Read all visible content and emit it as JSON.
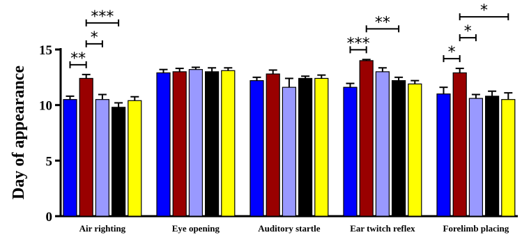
{
  "chart_data": {
    "type": "bar",
    "ylabel": "Day of appearance",
    "ylim": [
      0,
      15
    ],
    "yticks": [
      "0",
      "5",
      "10",
      "15"
    ],
    "categories": [
      "Air righting",
      "Eye opening",
      "Auditory startle",
      "Ear twitch reflex",
      "Forelimb placing"
    ],
    "series": [
      {
        "color": "#0000ff",
        "values": [
          10.5,
          12.9,
          12.2,
          11.6,
          11.0
        ],
        "errors": [
          0.3,
          0.3,
          0.3,
          0.35,
          0.6
        ]
      },
      {
        "color": "#990000",
        "values": [
          12.4,
          13.0,
          12.8,
          14.0,
          12.9
        ],
        "errors": [
          0.35,
          0.3,
          0.35,
          0.1,
          0.4
        ]
      },
      {
        "color": "#9999ff",
        "values": [
          10.5,
          13.2,
          11.6,
          13.0,
          10.6
        ],
        "errors": [
          0.45,
          0.2,
          0.8,
          0.35,
          0.35
        ]
      },
      {
        "color": "#000000",
        "values": [
          9.8,
          13.0,
          12.4,
          12.2,
          10.8
        ],
        "errors": [
          0.4,
          0.35,
          0.2,
          0.3,
          0.45
        ]
      },
      {
        "color": "#ffff00",
        "values": [
          10.4,
          13.1,
          12.4,
          11.9,
          10.5
        ],
        "errors": [
          0.35,
          0.25,
          0.3,
          0.3,
          0.6
        ]
      }
    ],
    "significance": [
      {
        "category": 0,
        "from": 0,
        "to": 1,
        "label": "**"
      },
      {
        "category": 0,
        "from": 1,
        "to": 2,
        "label": "*"
      },
      {
        "category": 0,
        "from": 1,
        "to": 3,
        "label": "***"
      },
      {
        "category": 3,
        "from": 0,
        "to": 1,
        "label": "***"
      },
      {
        "category": 3,
        "from": 1,
        "to": 3,
        "label": "**"
      },
      {
        "category": 4,
        "from": 0,
        "to": 1,
        "label": "*"
      },
      {
        "category": 4,
        "from": 1,
        "to": 2,
        "label": "*"
      },
      {
        "category": 4,
        "from": 1,
        "to": 4,
        "label": "*"
      }
    ]
  }
}
